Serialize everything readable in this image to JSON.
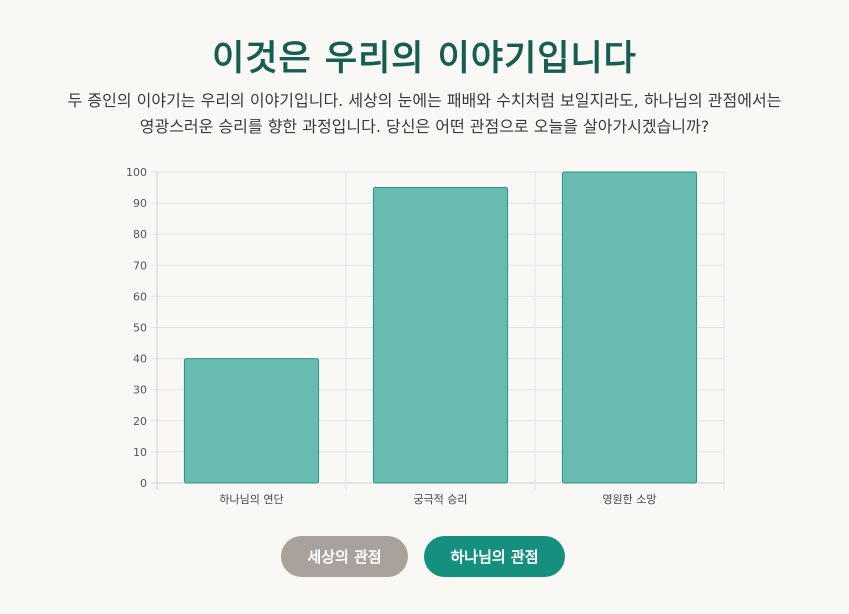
{
  "header": {
    "title": "이것은 우리의 이야기입니다",
    "subtitle_line1": "두 증인의 이야기는 우리의 이야기입니다. 세상의 눈에는 패배와 수치처럼 보일지라도, 하나님의 관점에서는",
    "subtitle_line2": "영광스러운 승리를 향한 과정입니다. 당신은 어떤 관점으로 오늘을 살아가시겠습니까?"
  },
  "chart_data": {
    "type": "bar",
    "categories": [
      "하나님의 연단",
      "궁극적 승리",
      "영원한 소망"
    ],
    "values": [
      40,
      95,
      100
    ],
    "ylim": [
      0,
      100
    ],
    "yticks": [
      0,
      10,
      20,
      30,
      40,
      50,
      60,
      70,
      80,
      90,
      100
    ],
    "grid": true,
    "legend": "none",
    "bar_fill": "#68bbb1",
    "bar_stroke": "#2a9485"
  },
  "buttons": {
    "world_label": "세상의 관점",
    "world_color": "#a9a29c",
    "god_label": "하나님의 관점",
    "god_color": "#15907f"
  }
}
